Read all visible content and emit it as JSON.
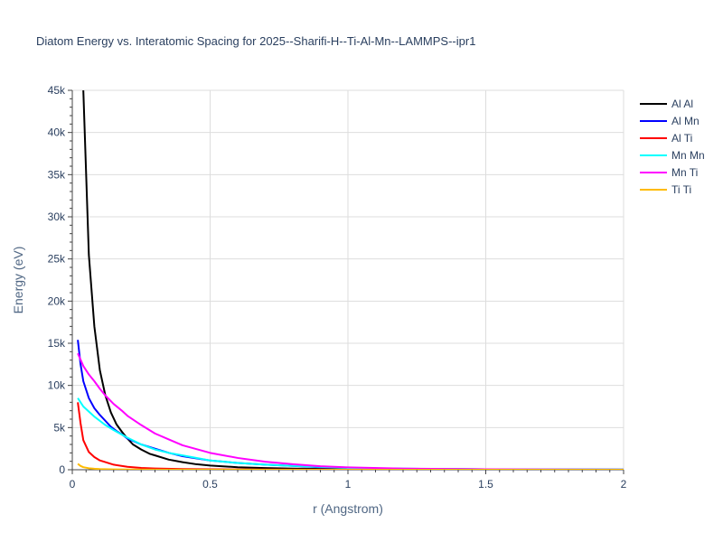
{
  "chart_data": {
    "type": "line",
    "title": "Diatom Energy vs. Interatomic Spacing for 2025--Sharifi-H--Ti-Al-Mn--LAMMPS--ipr1",
    "xlabel": "r (Angstrom)",
    "ylabel": "Energy (eV)",
    "xlim": [
      0,
      2
    ],
    "ylim": [
      0,
      45000
    ],
    "x_ticks": [
      0,
      0.5,
      1,
      1.5,
      2
    ],
    "x_tick_labels": [
      "0",
      "0.5",
      "1",
      "1.5",
      "2"
    ],
    "y_ticks": [
      0,
      5000,
      10000,
      15000,
      20000,
      25000,
      30000,
      35000,
      40000,
      45000
    ],
    "y_tick_labels": [
      "0",
      "5k",
      "10k",
      "15k",
      "20k",
      "25k",
      "30k",
      "35k",
      "40k",
      "45k"
    ],
    "grid": true,
    "legend_position": "right",
    "series": [
      {
        "name": "Al Al",
        "color": "#000000",
        "x": [
          0.04,
          0.06,
          0.08,
          0.1,
          0.12,
          0.14,
          0.16,
          0.18,
          0.2,
          0.22,
          0.25,
          0.28,
          0.3,
          0.35,
          0.4,
          0.45,
          0.5,
          0.6,
          0.7,
          0.8,
          1.0,
          1.2,
          1.5,
          2.0
        ],
        "y": [
          45000,
          25500,
          17000,
          11800,
          8800,
          6800,
          5400,
          4500,
          3700,
          3000,
          2400,
          1900,
          1700,
          1200,
          900,
          650,
          500,
          300,
          200,
          130,
          70,
          40,
          20,
          5
        ]
      },
      {
        "name": "Al Mn",
        "color": "#0000ff",
        "x": [
          0.02,
          0.03,
          0.04,
          0.06,
          0.08,
          0.1,
          0.12,
          0.14,
          0.16,
          0.18,
          0.2,
          0.25,
          0.3,
          0.35,
          0.4,
          0.5,
          0.6,
          0.7,
          0.8,
          0.9,
          1.0,
          1.2,
          1.5,
          2.0
        ],
        "y": [
          15400,
          12500,
          10500,
          8500,
          7300,
          6500,
          5800,
          5100,
          4600,
          4200,
          3700,
          3000,
          2500,
          2000,
          1600,
          1100,
          800,
          600,
          450,
          300,
          220,
          120,
          60,
          20
        ]
      },
      {
        "name": "Al Ti",
        "color": "#ff0000",
        "x": [
          0.02,
          0.03,
          0.04,
          0.06,
          0.08,
          0.1,
          0.12,
          0.15,
          0.2,
          0.25,
          0.3,
          0.4,
          0.5,
          0.7,
          1.0,
          1.5,
          2.0
        ],
        "y": [
          8000,
          5500,
          3500,
          2100,
          1500,
          1100,
          900,
          600,
          350,
          220,
          150,
          80,
          50,
          25,
          10,
          5,
          2
        ]
      },
      {
        "name": "Mn Mn",
        "color": "#00ffff",
        "x": [
          0.02,
          0.04,
          0.06,
          0.08,
          0.1,
          0.12,
          0.15,
          0.2,
          0.25,
          0.3,
          0.35,
          0.4,
          0.5,
          0.6,
          0.7,
          0.8,
          1.0,
          1.2,
          1.5,
          2.0
        ],
        "y": [
          8500,
          7500,
          6900,
          6300,
          5800,
          5300,
          4700,
          3800,
          3000,
          2400,
          2000,
          1700,
          1100,
          800,
          600,
          450,
          220,
          120,
          60,
          20
        ]
      },
      {
        "name": "Mn Ti",
        "color": "#ff00ff",
        "x": [
          0.02,
          0.04,
          0.06,
          0.08,
          0.1,
          0.12,
          0.15,
          0.18,
          0.2,
          0.25,
          0.3,
          0.35,
          0.4,
          0.5,
          0.6,
          0.7,
          0.8,
          0.9,
          1.0,
          1.2,
          1.5,
          2.0
        ],
        "y": [
          13800,
          12300,
          11300,
          10500,
          9600,
          8800,
          7800,
          7000,
          6400,
          5300,
          4300,
          3600,
          2900,
          2000,
          1400,
          950,
          650,
          420,
          280,
          130,
          50,
          15
        ]
      },
      {
        "name": "Ti Ti",
        "color": "#ffbb00",
        "x": [
          0.02,
          0.03,
          0.04,
          0.06,
          0.08,
          0.1,
          0.15,
          0.2,
          0.3,
          0.5,
          1.0,
          2.0
        ],
        "y": [
          700,
          450,
          300,
          180,
          120,
          80,
          40,
          25,
          12,
          5,
          2,
          0
        ]
      }
    ]
  }
}
